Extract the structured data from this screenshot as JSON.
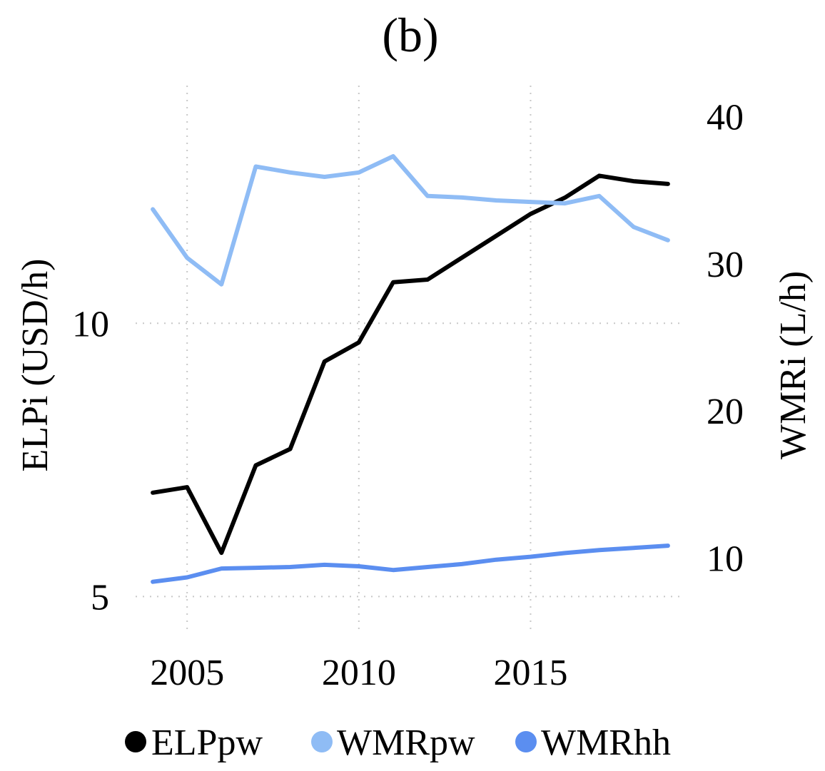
{
  "chart_data": {
    "type": "line",
    "title": "(b)",
    "x": [
      2004,
      2005,
      2006,
      2007,
      2008,
      2009,
      2010,
      2011,
      2012,
      2013,
      2014,
      2015,
      2016,
      2017,
      2018,
      2019
    ],
    "xticks": [
      "2005",
      "2010",
      "2015"
    ],
    "xtick_values": [
      2005,
      2010,
      2015
    ],
    "xlim": [
      2003.5,
      2019.5
    ],
    "left_axis": {
      "label": "ELPi (USD/h)",
      "ticks": [
        "5",
        "10"
      ],
      "tick_values": [
        5,
        10
      ],
      "lim": [
        4.3,
        14.35
      ]
    },
    "right_axis": {
      "label": "WMRi (L/h)",
      "ticks": [
        "10",
        "20",
        "30",
        "40"
      ],
      "tick_values": [
        10,
        20,
        30,
        40
      ],
      "lim": [
        4.8,
        42.1
      ]
    },
    "series": [
      {
        "name": "ELPpw",
        "axis": "left",
        "color": "#000000",
        "values": [
          6.9,
          7.0,
          5.8,
          7.4,
          7.7,
          9.3,
          9.65,
          10.75,
          10.8,
          11.2,
          11.6,
          12.0,
          12.3,
          12.7,
          12.6,
          12.55
        ]
      },
      {
        "name": "WMRpw",
        "axis": "right",
        "color": "#8fbcf5",
        "values": [
          33.7,
          30.4,
          28.6,
          36.6,
          36.2,
          35.9,
          36.2,
          37.3,
          34.6,
          34.5,
          34.3,
          34.2,
          34.1,
          34.6,
          32.5,
          31.6
        ]
      },
      {
        "name": "WMRhh",
        "axis": "right",
        "color": "#5b8ef0",
        "values": [
          8.4,
          8.7,
          9.3,
          9.35,
          9.4,
          9.55,
          9.45,
          9.2,
          9.4,
          9.6,
          9.9,
          10.1,
          10.35,
          10.55,
          10.7,
          10.85
        ]
      }
    ],
    "grid": true,
    "legend": "bottom"
  }
}
